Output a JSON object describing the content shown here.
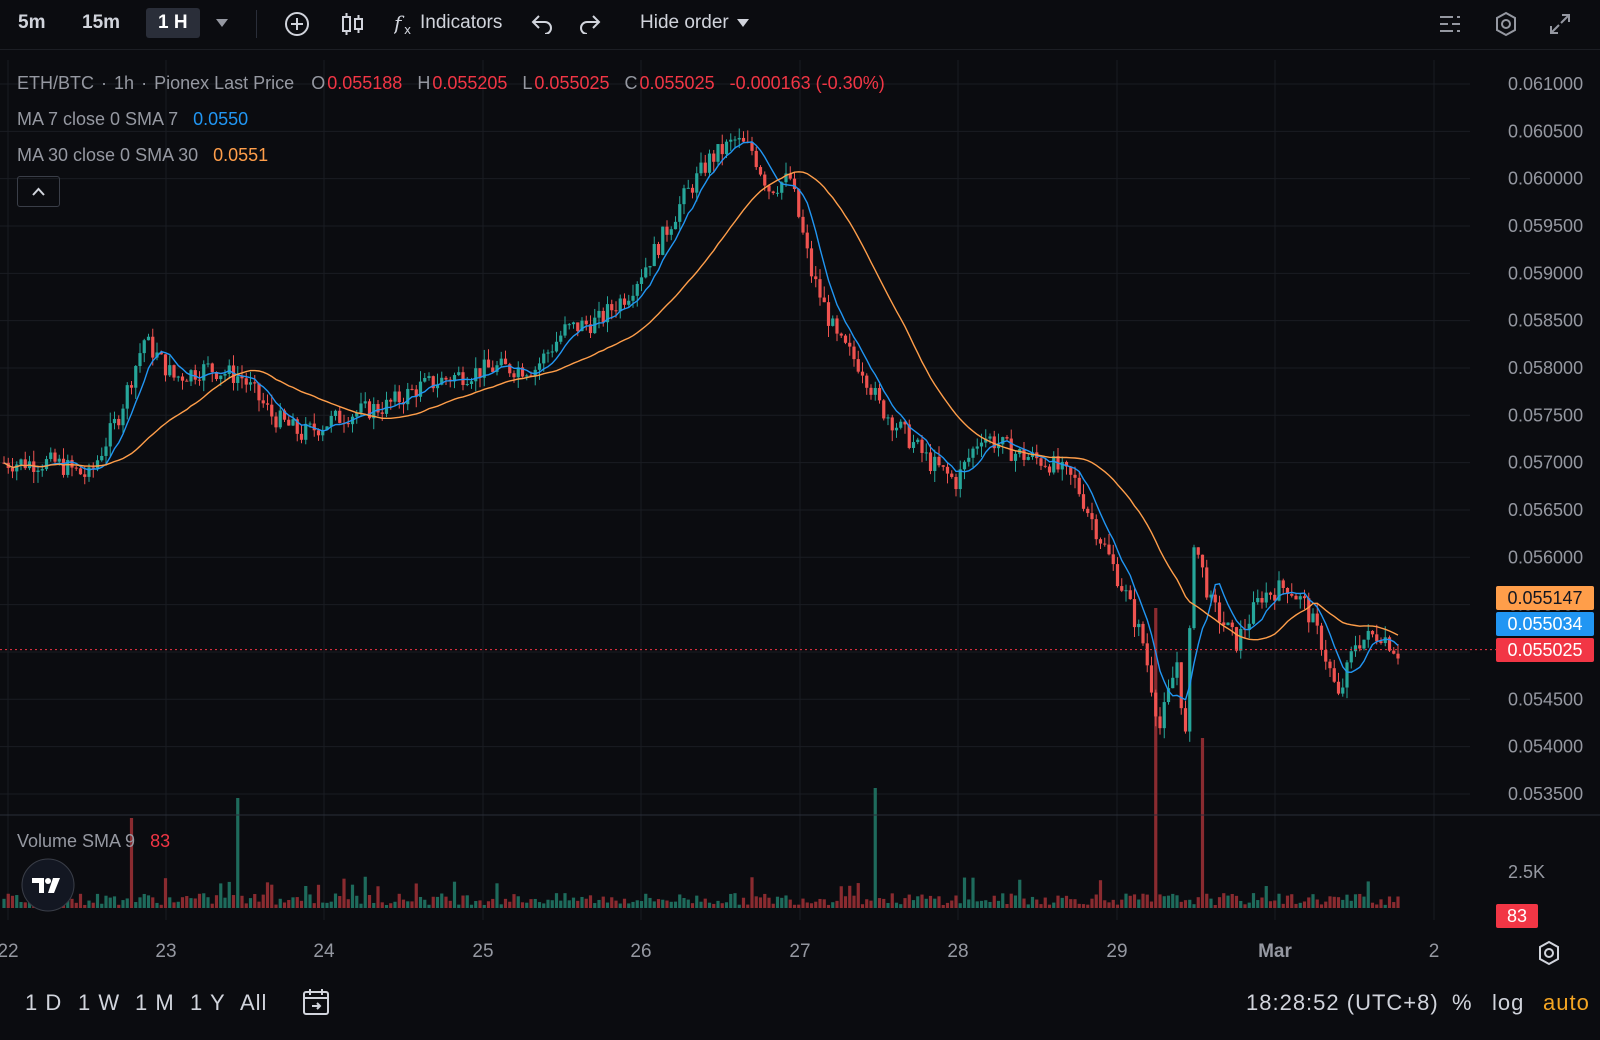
{
  "toolbar": {
    "intervals": [
      "5m",
      "15m",
      "1 H"
    ],
    "active_interval": "1 H",
    "indicators_label": "Indicators",
    "hide_order_label": "Hide order"
  },
  "legend": {
    "symbol": "ETH/BTC",
    "interval": "1h",
    "source": "Pionex Last Price",
    "o_label": "O",
    "o_value": "0.055188",
    "h_label": "H",
    "h_value": "0.055205",
    "l_label": "L",
    "l_value": "0.055025",
    "c_label": "C",
    "c_value": "0.055025",
    "change": "-0.000163 (-0.30%)",
    "ma7_label": "MA 7 close 0 SMA 7",
    "ma7_value": "0.0550",
    "ma30_label": "MA 30 close 0 SMA 30",
    "ma30_value": "0.0551",
    "volume_label": "Volume SMA 9",
    "volume_value": "83"
  },
  "price_axis": {
    "ticks": [
      "0.061000",
      "0.060500",
      "0.060000",
      "0.059500",
      "0.059000",
      "0.058500",
      "0.058000",
      "0.057500",
      "0.057000",
      "0.056500",
      "0.056000",
      "0.055500",
      "0.055000",
      "0.054500",
      "0.054000",
      "0.053500"
    ],
    "tags": [
      {
        "value": "0.055147",
        "color": "#ff9e4a"
      },
      {
        "value": "0.055034",
        "color": "#2196f3"
      },
      {
        "value": "0.055025",
        "color": "#f23645"
      }
    ]
  },
  "volume_axis": {
    "tick": "2.5K",
    "tag": "83"
  },
  "time_axis": {
    "labels": [
      "22",
      "23",
      "24",
      "25",
      "26",
      "27",
      "28",
      "29",
      "Mar",
      "2"
    ]
  },
  "bottombar": {
    "ranges": [
      "1 D",
      "1 W",
      "1 M",
      "1 Y",
      "All"
    ],
    "clock": "18:28:52 (UTC+8)",
    "percent": "%",
    "log": "log",
    "auto": "auto"
  },
  "colors": {
    "up": "#26a69a",
    "down": "#ef5350",
    "ma7": "#2196f3",
    "ma30": "#ff9e4a",
    "accent": "#f5a623"
  },
  "chart_data": {
    "type": "candlestick",
    "symbol": "ETH/BTC",
    "interval": "1h",
    "ylim": [
      0.0533,
      0.0612
    ],
    "x_labels": [
      "22",
      "23",
      "24",
      "25",
      "26",
      "27",
      "28",
      "29",
      "Mar",
      "2"
    ],
    "last_price": 0.055025,
    "path_points": [
      [
        0,
        0.057
      ],
      [
        12,
        0.057
      ],
      [
        20,
        0.05685
      ],
      [
        27,
        0.0575
      ],
      [
        33,
        0.0583
      ],
      [
        40,
        0.0579
      ],
      [
        48,
        0.058
      ],
      [
        56,
        0.0579
      ],
      [
        63,
        0.0575
      ],
      [
        70,
        0.0573
      ],
      [
        80,
        0.0575
      ],
      [
        90,
        0.0576
      ],
      [
        98,
        0.0578
      ],
      [
        105,
        0.0579
      ],
      [
        115,
        0.058
      ],
      [
        125,
        0.058
      ],
      [
        132,
        0.0584
      ],
      [
        140,
        0.0585
      ],
      [
        147,
        0.0588
      ],
      [
        154,
        0.0593
      ],
      [
        160,
        0.0598
      ],
      [
        166,
        0.0602
      ],
      [
        172,
        0.0604
      ],
      [
        176,
        0.0603
      ],
      [
        180,
        0.0599
      ],
      [
        185,
        0.06
      ],
      [
        190,
        0.059
      ],
      [
        196,
        0.0583
      ],
      [
        202,
        0.058
      ],
      [
        206,
        0.0576
      ],
      [
        212,
        0.0573
      ],
      [
        218,
        0.057
      ],
      [
        224,
        0.0568
      ],
      [
        230,
        0.0573
      ],
      [
        238,
        0.0571
      ],
      [
        246,
        0.057
      ],
      [
        252,
        0.0568
      ],
      [
        258,
        0.0562
      ],
      [
        264,
        0.0556
      ],
      [
        268,
        0.0551
      ],
      [
        272,
        0.0542
      ],
      [
        276,
        0.0549
      ],
      [
        278,
        0.0541
      ],
      [
        280,
        0.0562
      ],
      [
        284,
        0.0555
      ],
      [
        290,
        0.0551
      ],
      [
        296,
        0.0556
      ],
      [
        302,
        0.0557
      ],
      [
        306,
        0.0555
      ],
      [
        310,
        0.0551
      ],
      [
        314,
        0.0545
      ],
      [
        318,
        0.0551
      ],
      [
        324,
        0.0552
      ],
      [
        328,
        0.055
      ]
    ],
    "volume_spikes": [
      [
        30,
        90
      ],
      [
        55,
        110
      ],
      [
        205,
        120
      ],
      [
        271,
        300
      ],
      [
        282,
        170
      ]
    ],
    "series": [
      {
        "name": "MA 7 close 0 SMA 7",
        "last": 0.055
      },
      {
        "name": "MA 30 close 0 SMA 30",
        "last": 0.0551
      },
      {
        "name": "Volume SMA 9",
        "last": 83
      }
    ]
  }
}
